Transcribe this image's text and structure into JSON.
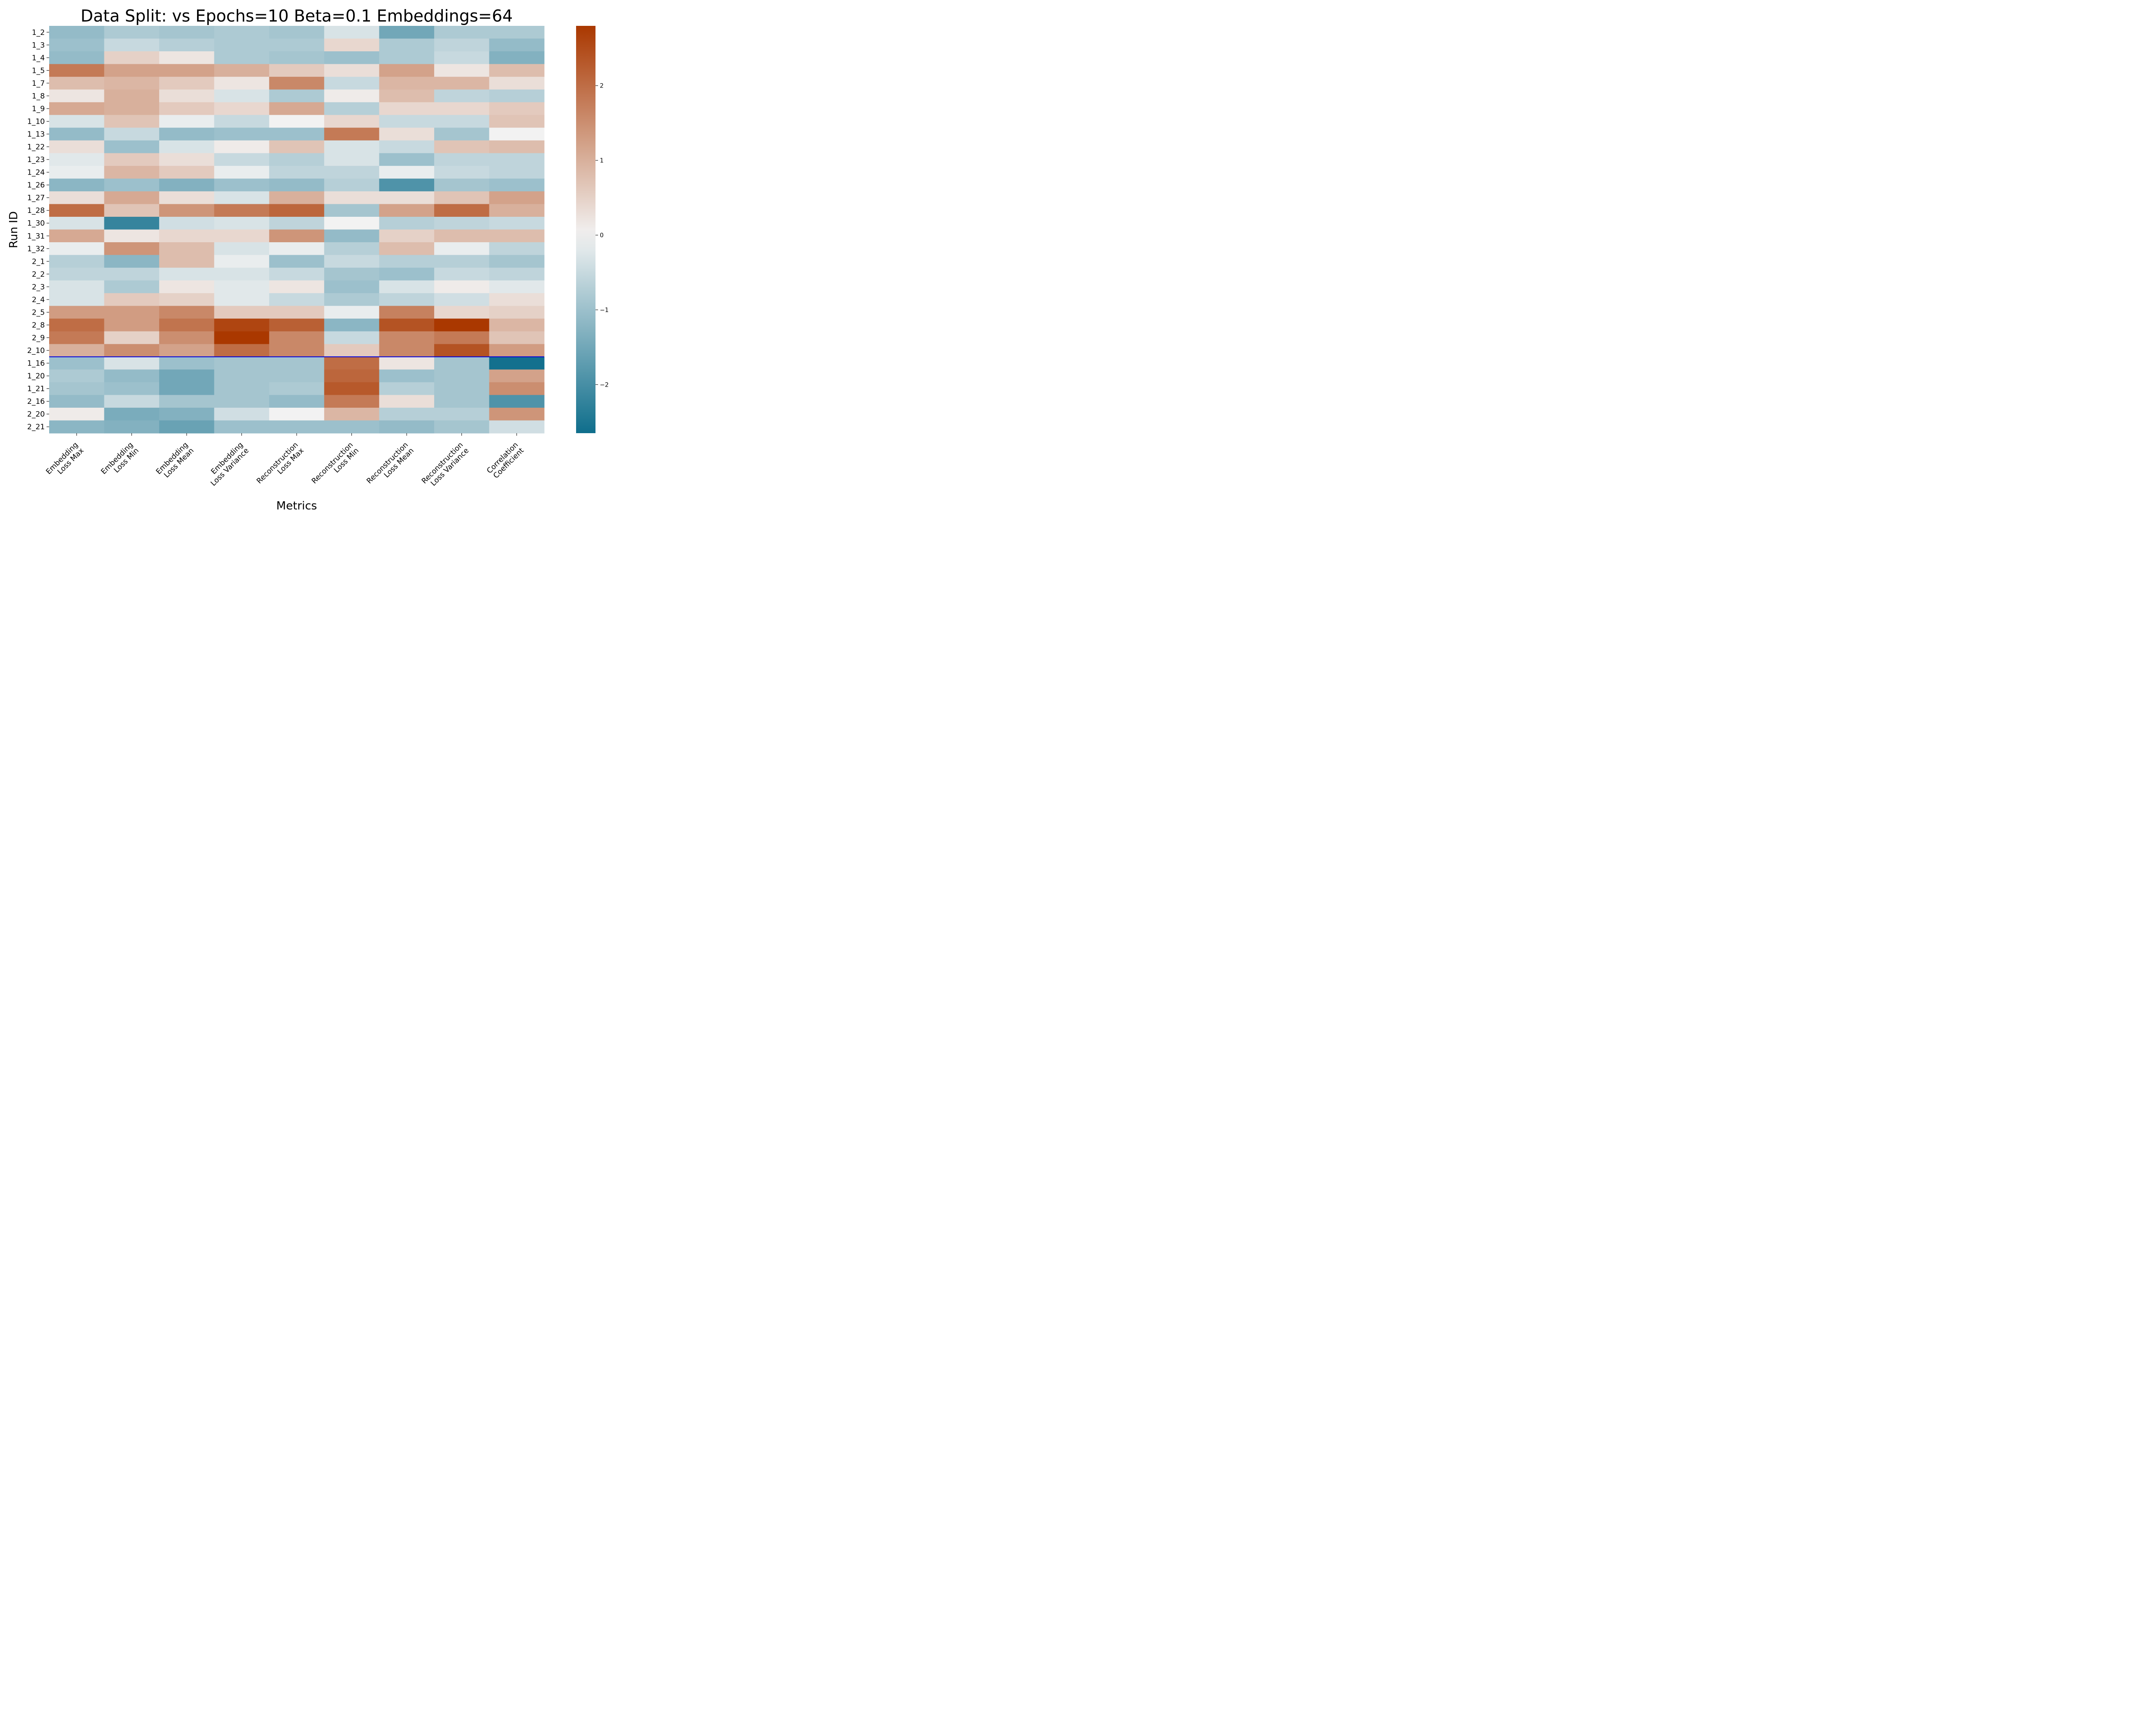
{
  "chart_data": {
    "type": "heatmap",
    "title": "Data Split: vs Epochs=10 Beta=0.1 Embeddings=64",
    "xlabel": "Metrics",
    "ylabel": "Run ID",
    "columns": [
      [
        "Embedding",
        "Loss Max"
      ],
      [
        "Embedding",
        "Loss Min"
      ],
      [
        "Embedding",
        "Loss Mean"
      ],
      [
        "Embedding",
        "Loss Variance"
      ],
      [
        "Reconstruction",
        "Loss Max"
      ],
      [
        "Reconstruction",
        "Loss Min"
      ],
      [
        "Reconstruction",
        "Loss Mean"
      ],
      [
        "Reconstruction",
        "Loss Variance"
      ],
      [
        "Correlation",
        "Coefficient"
      ]
    ],
    "rows": [
      "1_2",
      "1_3",
      "1_4",
      "1_5",
      "1_7",
      "1_8",
      "1_9",
      "1_10",
      "1_13",
      "1_22",
      "1_23",
      "1_24",
      "1_26",
      "1_27",
      "1_28",
      "1_30",
      "1_31",
      "1_32",
      "2_1",
      "2_2",
      "2_3",
      "2_4",
      "2_5",
      "2_8",
      "2_9",
      "2_10",
      "1_16",
      "1_20",
      "1_21",
      "2_16",
      "2_20",
      "2_21"
    ],
    "values": [
      [
        -1.1,
        -0.8,
        -0.9,
        -0.8,
        -0.9,
        -0.3,
        -1.5,
        -0.8,
        -0.8
      ],
      [
        -1.0,
        -0.5,
        -0.7,
        -0.8,
        -0.8,
        0.4,
        -0.8,
        -0.6,
        -1.1
      ],
      [
        -1.1,
        0.5,
        0.2,
        -0.8,
        -0.9,
        -1.0,
        -0.8,
        -0.5,
        -1.3
      ],
      [
        1.8,
        1.2,
        1.2,
        1.0,
        0.6,
        0.3,
        1.2,
        0.2,
        0.8
      ],
      [
        0.8,
        0.9,
        0.6,
        0.2,
        1.6,
        -0.5,
        0.9,
        0.9,
        0.3
      ],
      [
        0.2,
        1.0,
        0.3,
        -0.3,
        -0.8,
        0.1,
        0.8,
        -0.6,
        -0.7
      ],
      [
        1.1,
        1.0,
        0.6,
        0.4,
        1.1,
        -0.7,
        0.4,
        0.4,
        0.6
      ],
      [
        -0.3,
        0.7,
        -0.1,
        -0.5,
        0.0,
        0.4,
        -0.5,
        -0.5,
        0.7
      ],
      [
        -1.1,
        -0.5,
        -1.1,
        -1.0,
        -1.0,
        1.8,
        0.3,
        -0.9,
        0.0
      ],
      [
        0.3,
        -1.0,
        -0.3,
        0.1,
        0.7,
        -0.3,
        -0.5,
        0.7,
        0.8
      ],
      [
        -0.2,
        0.6,
        0.3,
        -0.5,
        -0.7,
        -0.3,
        -1.0,
        -0.6,
        -0.6
      ],
      [
        -0.1,
        0.9,
        0.6,
        -0.1,
        -0.6,
        -0.6,
        -0.1,
        -0.5,
        -0.6
      ],
      [
        -1.2,
        -1.0,
        -1.3,
        -1.0,
        -1.1,
        -0.7,
        -1.9,
        -0.9,
        -1.0
      ],
      [
        0.3,
        1.1,
        0.3,
        -0.3,
        1.0,
        0.3,
        0.3,
        0.7,
        1.2
      ],
      [
        2.0,
        0.7,
        1.4,
        1.8,
        2.1,
        -0.9,
        1.2,
        2.0,
        1.0
      ],
      [
        -0.3,
        -2.2,
        -0.4,
        -0.3,
        -0.6,
        0.0,
        -0.7,
        -0.6,
        -0.5
      ],
      [
        1.1,
        0.2,
        0.4,
        0.4,
        1.4,
        -1.1,
        0.5,
        0.8,
        0.8
      ],
      [
        -0.1,
        1.4,
        0.8,
        -0.3,
        -0.1,
        -0.7,
        0.8,
        -0.1,
        -0.6
      ],
      [
        -0.7,
        -1.2,
        0.8,
        -0.1,
        -1.0,
        -0.5,
        -0.7,
        -0.7,
        -0.9
      ],
      [
        -0.6,
        -0.6,
        -0.3,
        -0.3,
        -0.5,
        -0.9,
        -1.0,
        -0.5,
        -0.6
      ],
      [
        -0.3,
        -0.8,
        0.2,
        -0.2,
        0.2,
        -1.0,
        -0.3,
        0.1,
        -0.2
      ],
      [
        -0.3,
        0.6,
        0.5,
        -0.2,
        -0.5,
        -0.8,
        -0.6,
        -0.4,
        0.3
      ],
      [
        1.3,
        1.3,
        1.6,
        0.6,
        0.6,
        -0.1,
        1.7,
        0.4,
        0.5
      ],
      [
        2.0,
        1.3,
        1.9,
        2.6,
        2.2,
        -1.2,
        2.4,
        2.8,
        0.9
      ],
      [
        1.8,
        0.5,
        1.5,
        2.8,
        1.6,
        -0.5,
        1.6,
        1.8,
        0.7
      ],
      [
        1.0,
        1.5,
        1.2,
        2.0,
        1.6,
        0.6,
        1.6,
        2.4,
        1.3
      ],
      [
        -1.0,
        -0.3,
        -1.0,
        -0.9,
        -0.9,
        2.0,
        0.2,
        -0.9,
        -2.6
      ],
      [
        -0.8,
        -1.1,
        -1.5,
        -0.9,
        -0.9,
        2.1,
        -1.0,
        -0.9,
        1.2
      ],
      [
        -0.9,
        -1.0,
        -1.5,
        -0.9,
        -0.8,
        2.3,
        -0.7,
        -0.9,
        1.5
      ],
      [
        -1.1,
        -0.5,
        -0.9,
        -0.9,
        -1.1,
        1.8,
        0.3,
        -0.9,
        -1.9
      ],
      [
        0.1,
        -1.4,
        -1.3,
        -0.4,
        0.0,
        0.9,
        -0.7,
        -0.7,
        1.4
      ],
      [
        -1.2,
        -1.3,
        -1.6,
        -1.0,
        -1.0,
        -1.0,
        -1.1,
        -0.9,
        -0.4
      ]
    ],
    "vmin": -2.65,
    "vmax": 2.8,
    "colorbar_ticks": [
      2,
      1,
      0,
      -1,
      -2
    ],
    "colorbar_tick_labels": [
      "2",
      "1",
      "0",
      "−1",
      "−2"
    ],
    "colormap": {
      "low": "#0f6e8c",
      "mid": "#f2f2f2",
      "high": "#aa3800"
    },
    "separator_after_row": "2_10",
    "separator_color": "#0000dd"
  }
}
